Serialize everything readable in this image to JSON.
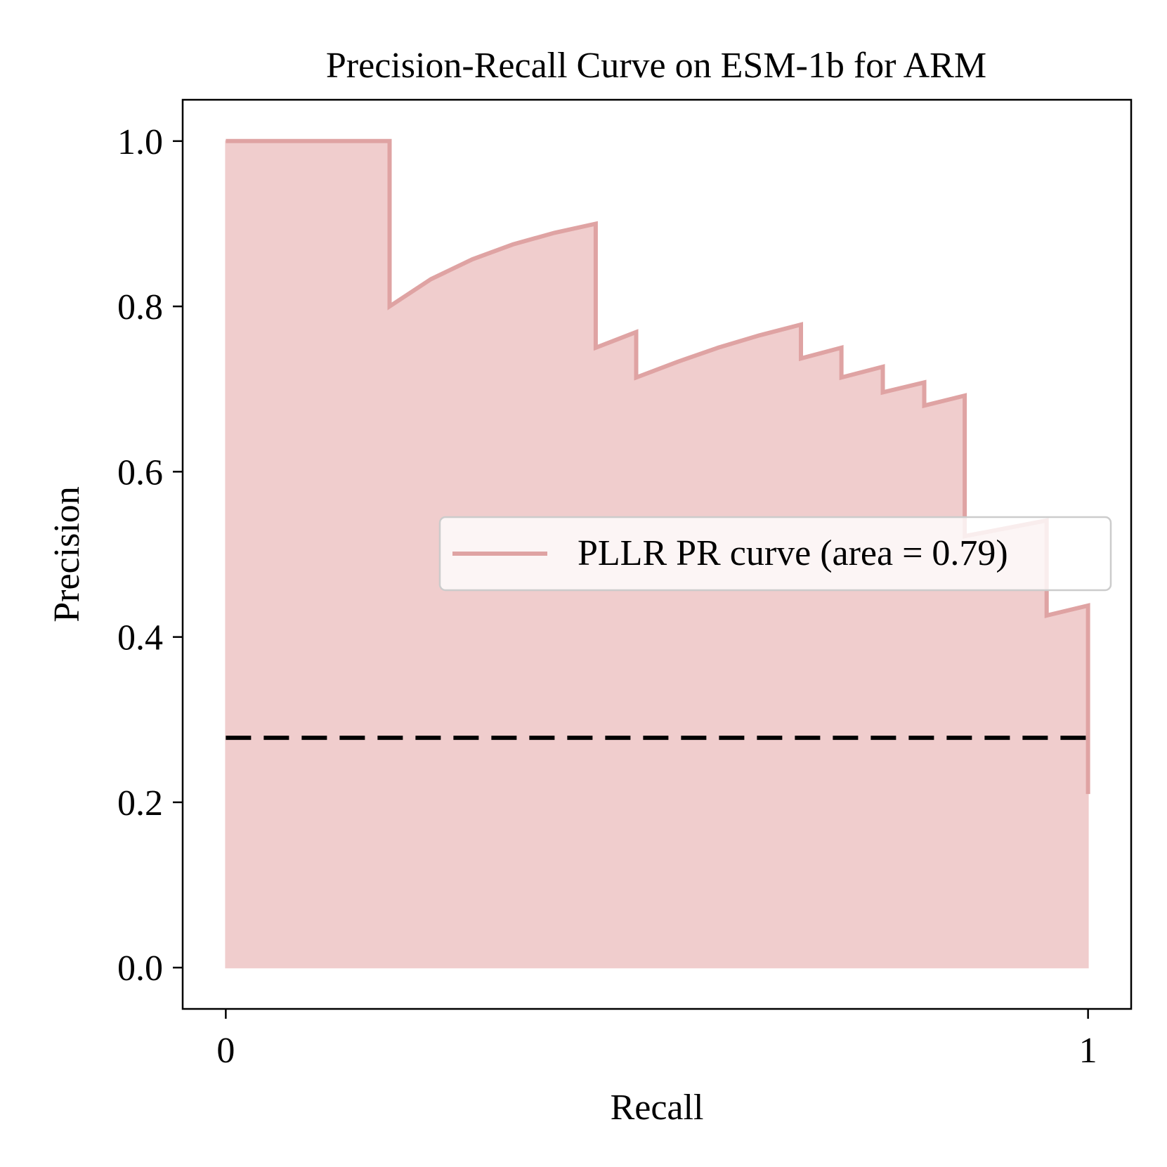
{
  "chart_data": {
    "type": "area",
    "title": "Precision-Recall Curve on ESM-1b for ARM",
    "xlabel": "Recall",
    "ylabel": "Precision",
    "xlim": [
      -0.05,
      1.05
    ],
    "ylim": [
      -0.05,
      1.05
    ],
    "xticks": [
      {
        "value": 0,
        "label": "0"
      },
      {
        "value": 1,
        "label": "1"
      }
    ],
    "yticks": [
      {
        "value": 0.0,
        "label": "0.0"
      },
      {
        "value": 0.2,
        "label": "0.2"
      },
      {
        "value": 0.4,
        "label": "0.4"
      },
      {
        "value": 0.6,
        "label": "0.6"
      },
      {
        "value": 0.8,
        "label": "0.8"
      },
      {
        "value": 1.0,
        "label": "1.0"
      }
    ],
    "grid": false,
    "legend": {
      "placement": "center-right"
    },
    "series": [
      {
        "name": "PLLR PR curve (area = 0.79)",
        "color": "#dfa3a3",
        "fill_color": "#f0cdcd",
        "drawstyle": "step",
        "points": [
          [
            0.0,
            1.0
          ],
          [
            0.19,
            1.0
          ],
          [
            0.19,
            0.8
          ],
          [
            0.238,
            0.833
          ],
          [
            0.286,
            0.857
          ],
          [
            0.333,
            0.875
          ],
          [
            0.381,
            0.889
          ],
          [
            0.429,
            0.9
          ],
          [
            0.429,
            0.75
          ],
          [
            0.476,
            0.769
          ],
          [
            0.476,
            0.714
          ],
          [
            0.524,
            0.733
          ],
          [
            0.571,
            0.75
          ],
          [
            0.619,
            0.765
          ],
          [
            0.667,
            0.778
          ],
          [
            0.667,
            0.737
          ],
          [
            0.714,
            0.75
          ],
          [
            0.714,
            0.714
          ],
          [
            0.762,
            0.727
          ],
          [
            0.762,
            0.696
          ],
          [
            0.81,
            0.708
          ],
          [
            0.81,
            0.68
          ],
          [
            0.857,
            0.692
          ],
          [
            0.857,
            0.522
          ],
          [
            0.952,
            0.541
          ],
          [
            0.952,
            0.426
          ],
          [
            1.0,
            0.438
          ],
          [
            1.0,
            0.21
          ]
        ]
      },
      {
        "name": "",
        "color": "#000000",
        "linestyle": "dashed",
        "points": [
          [
            0.0,
            0.278
          ],
          [
            1.0,
            0.278
          ]
        ]
      }
    ]
  }
}
